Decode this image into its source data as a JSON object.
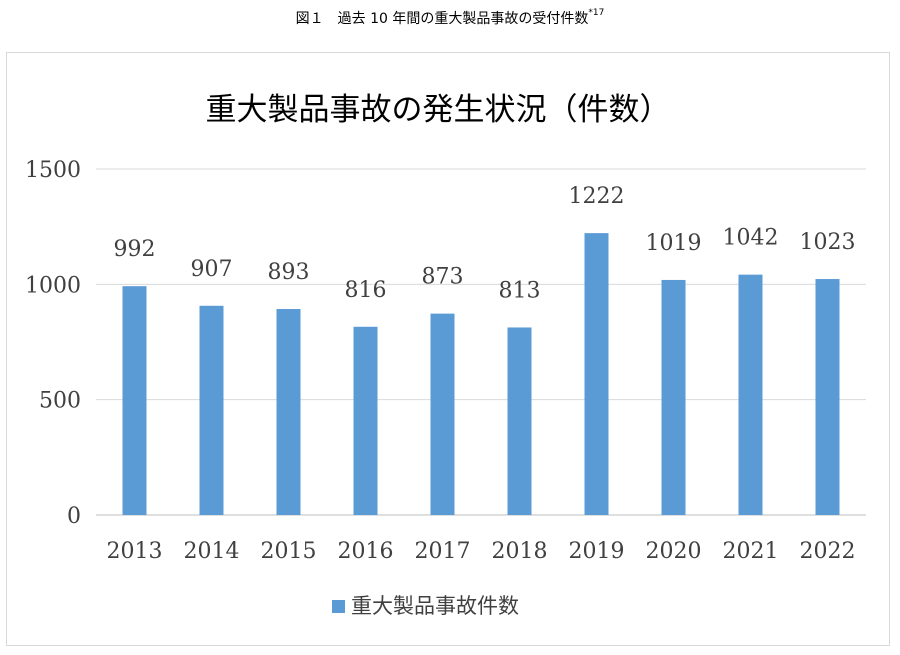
{
  "caption": {
    "text": "図１　過去 10 年間の重大製品事故の受付件数",
    "note_mark": "*17"
  },
  "colors": {
    "bar": "#5b9bd5",
    "grid": "#d9d9d9",
    "axis": "#bfbfbf"
  },
  "chart_data": {
    "type": "bar",
    "title": "重大製品事故の発生状況（件数）",
    "categories": [
      "2013",
      "2014",
      "2015",
      "2016",
      "2017",
      "2018",
      "2019",
      "2020",
      "2021",
      "2022"
    ],
    "series": [
      {
        "name": "重大製品事故件数",
        "values": [
          992,
          907,
          893,
          816,
          873,
          813,
          1222,
          1019,
          1042,
          1023
        ]
      }
    ],
    "yticks": [
      0,
      500,
      1000,
      1500
    ],
    "ylim": [
      0,
      1500
    ],
    "grid": true,
    "data_labels": true,
    "legend": "bottom"
  }
}
